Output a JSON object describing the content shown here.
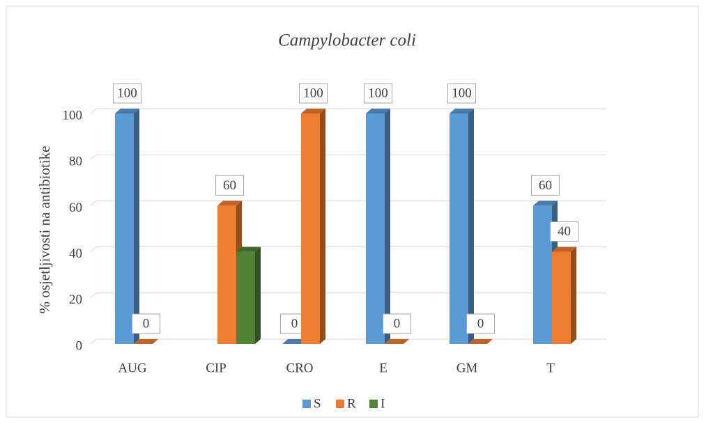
{
  "chart_data": {
    "type": "bar3d",
    "title": "Campylobacter coli",
    "y_label": "% osjetljivosti na antibiotike",
    "categories": [
      "AUG",
      "CIP",
      "CRO",
      "E",
      "GM",
      "T"
    ],
    "series": [
      {
        "name": "S",
        "color": "#5b9bd5",
        "data_labels": true,
        "values": [
          100,
          null,
          0,
          100,
          100,
          60
        ]
      },
      {
        "name": "R",
        "color": "#ed7d31",
        "data_labels": true,
        "values": [
          0,
          60,
          100,
          0,
          0,
          40
        ]
      },
      {
        "name": "I",
        "color": "#548235",
        "data_labels": false,
        "values": [
          null,
          40,
          null,
          null,
          null,
          null
        ]
      }
    ],
    "ylim": [
      0,
      100
    ],
    "yticks": [
      0,
      20,
      40,
      60,
      80,
      100
    ],
    "grid": true,
    "legend": "bottom"
  }
}
